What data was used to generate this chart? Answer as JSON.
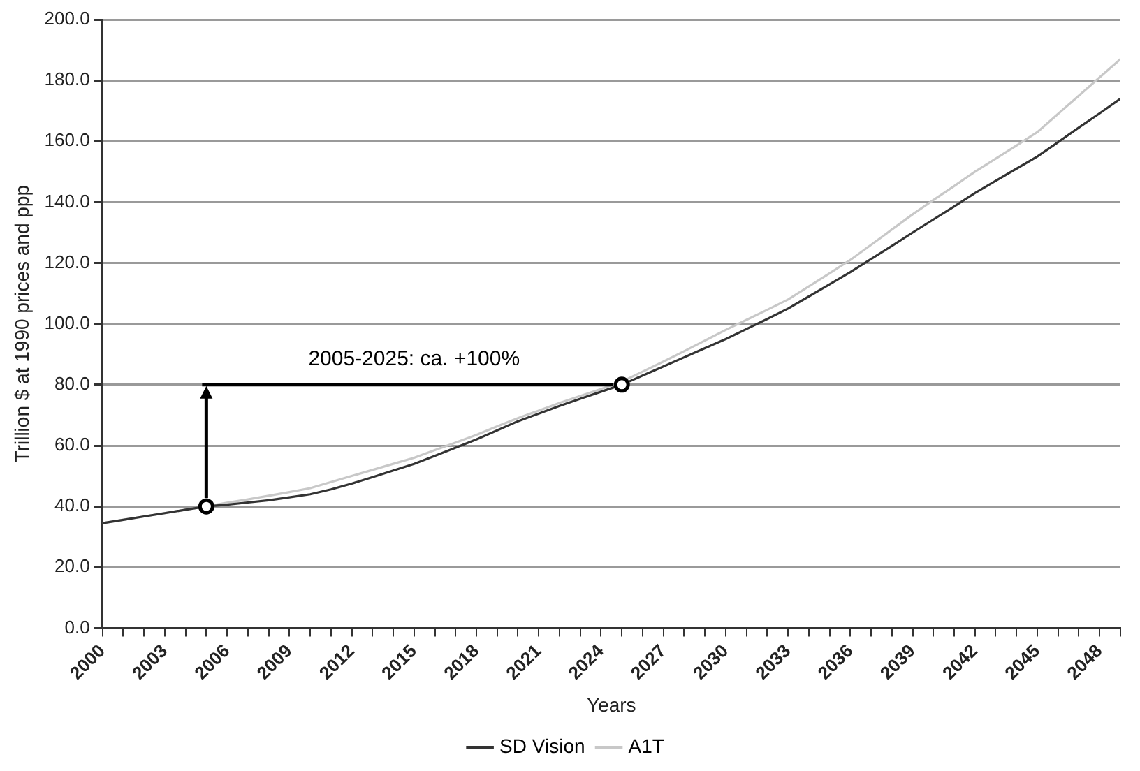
{
  "chart_data": {
    "type": "line",
    "xlabel": "Years",
    "ylabel": "Trillion $ at 1990 prices and ppp",
    "x": [
      2000,
      2001,
      2002,
      2003,
      2004,
      2005,
      2006,
      2007,
      2008,
      2009,
      2010,
      2011,
      2012,
      2013,
      2014,
      2015,
      2016,
      2017,
      2018,
      2019,
      2020,
      2021,
      2022,
      2023,
      2024,
      2025,
      2026,
      2027,
      2028,
      2029,
      2030,
      2031,
      2032,
      2033,
      2034,
      2035,
      2036,
      2037,
      2038,
      2039,
      2040,
      2041,
      2042,
      2043,
      2044,
      2045,
      2046,
      2047,
      2048,
      2049
    ],
    "xlim": [
      2000,
      2049
    ],
    "xticks": [
      {
        "value": 2000,
        "label": "2000"
      },
      {
        "value": 2001,
        "label": null
      },
      {
        "value": 2002,
        "label": null
      },
      {
        "value": 2003,
        "label": "2003"
      },
      {
        "value": 2004,
        "label": null
      },
      {
        "value": 2005,
        "label": null
      },
      {
        "value": 2006,
        "label": "2006"
      },
      {
        "value": 2007,
        "label": null
      },
      {
        "value": 2008,
        "label": null
      },
      {
        "value": 2009,
        "label": "2009"
      },
      {
        "value": 2010,
        "label": null
      },
      {
        "value": 2011,
        "label": null
      },
      {
        "value": 2012,
        "label": "2012"
      },
      {
        "value": 2013,
        "label": null
      },
      {
        "value": 2014,
        "label": null
      },
      {
        "value": 2015,
        "label": "2015"
      },
      {
        "value": 2016,
        "label": null
      },
      {
        "value": 2017,
        "label": null
      },
      {
        "value": 2018,
        "label": "2018"
      },
      {
        "value": 2019,
        "label": null
      },
      {
        "value": 2020,
        "label": null
      },
      {
        "value": 2021,
        "label": "2021"
      },
      {
        "value": 2022,
        "label": null
      },
      {
        "value": 2023,
        "label": null
      },
      {
        "value": 2024,
        "label": "2024"
      },
      {
        "value": 2025,
        "label": null
      },
      {
        "value": 2026,
        "label": null
      },
      {
        "value": 2027,
        "label": "2027"
      },
      {
        "value": 2028,
        "label": null
      },
      {
        "value": 2029,
        "label": null
      },
      {
        "value": 2030,
        "label": "2030"
      },
      {
        "value": 2031,
        "label": null
      },
      {
        "value": 2032,
        "label": null
      },
      {
        "value": 2033,
        "label": "2033"
      },
      {
        "value": 2034,
        "label": null
      },
      {
        "value": 2035,
        "label": null
      },
      {
        "value": 2036,
        "label": "2036"
      },
      {
        "value": 2037,
        "label": null
      },
      {
        "value": 2038,
        "label": null
      },
      {
        "value": 2039,
        "label": "2039"
      },
      {
        "value": 2040,
        "label": null
      },
      {
        "value": 2041,
        "label": null
      },
      {
        "value": 2042,
        "label": "2042"
      },
      {
        "value": 2043,
        "label": null
      },
      {
        "value": 2044,
        "label": null
      },
      {
        "value": 2045,
        "label": "2045"
      },
      {
        "value": 2046,
        "label": null
      },
      {
        "value": 2047,
        "label": null
      },
      {
        "value": 2048,
        "label": "2048"
      },
      {
        "value": 2049,
        "label": null
      }
    ],
    "ylim": [
      0,
      200
    ],
    "yticks": [
      {
        "value": 0,
        "label": "0.0"
      },
      {
        "value": 20,
        "label": "20.0"
      },
      {
        "value": 40,
        "label": "40.0"
      },
      {
        "value": 60,
        "label": "60.0"
      },
      {
        "value": 80,
        "label": "80.0"
      },
      {
        "value": 100,
        "label": "100.0"
      },
      {
        "value": 120,
        "label": "120.0"
      },
      {
        "value": 140,
        "label": "140.0"
      },
      {
        "value": 160,
        "label": "160.0"
      },
      {
        "value": 180,
        "label": "180.0"
      },
      {
        "value": 200,
        "label": "200.0"
      }
    ],
    "grid": "y",
    "legend": "bottom",
    "series": [
      {
        "name": "SD Vision",
        "color": "#333333",
        "values": [
          34.5,
          35.6,
          36.7,
          37.8,
          38.9,
          40,
          40.6,
          41.3,
          42,
          43,
          44,
          45.6,
          47.5,
          49.6,
          51.8,
          54,
          56.6,
          59.3,
          62,
          65,
          68,
          70.5,
          73,
          75.4,
          77.7,
          80,
          83,
          86,
          89,
          92,
          95,
          98.3,
          101.6,
          105,
          109,
          113,
          117,
          121.3,
          125.6,
          130,
          134.3,
          138.6,
          143,
          147,
          151,
          155,
          159.7,
          164.5,
          169.2,
          174
        ]
      },
      {
        "name": "A1T",
        "color": "#c8c8c8",
        "values": [
          34.5,
          35.6,
          36.7,
          37.8,
          38.9,
          40,
          41.2,
          42.3,
          43.5,
          44.7,
          46,
          48,
          50,
          52,
          54,
          56,
          58.5,
          61,
          63.5,
          66.3,
          69,
          71.5,
          74,
          76.3,
          78.6,
          81,
          84.3,
          87.6,
          91,
          94.5,
          98,
          101.3,
          104.6,
          108,
          112.3,
          116.6,
          121,
          126,
          131,
          136,
          140.7,
          145.3,
          150,
          154.3,
          158.6,
          163,
          169,
          175,
          181,
          187
        ]
      },
      {
        "type": "scatter",
        "color": "#000000",
        "marker": "circle",
        "x": [
          2005,
          2025
        ],
        "values": [
          40,
          80
        ]
      }
    ],
    "annotations": [
      "2005-2025: ca. +100%"
    ]
  }
}
